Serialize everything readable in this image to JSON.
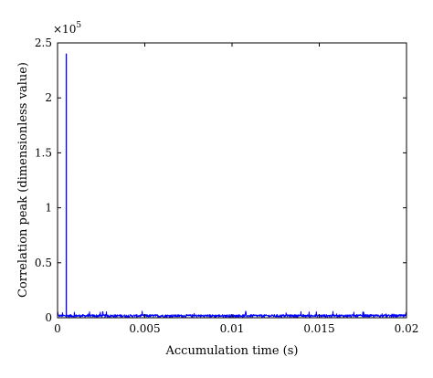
{
  "chart_data": {
    "type": "line",
    "title": "",
    "xlabel": "Accumulation time (s)",
    "ylabel": "Correlation peak (dimensionless value)",
    "xlim": [
      0,
      0.02
    ],
    "ylim": [
      0,
      250000
    ],
    "x_ticks": [
      0,
      0.005,
      0.01,
      0.015,
      0.02
    ],
    "x_tick_labels": [
      "0",
      "0.005",
      "0.01",
      "0.015",
      "0.02"
    ],
    "y_ticks": [
      0,
      50000,
      100000,
      150000,
      200000,
      250000
    ],
    "y_tick_labels": [
      "0",
      "0.5",
      "1",
      "1.5",
      "2",
      "2.5"
    ],
    "y_multiplier": {
      "base": "×10",
      "exponent": "5"
    },
    "grid": false,
    "legend": "none",
    "series": [
      {
        "color": "#0000ff",
        "peak": {
          "x": 0.0005,
          "y": 240000
        },
        "noise_floor_typical": 2500,
        "noise_floor_max": 6000,
        "x_range": [
          0,
          0.02
        ]
      }
    ]
  },
  "colors": {
    "line": "#0000ff",
    "axes": "#000000",
    "background": "#ffffff"
  }
}
